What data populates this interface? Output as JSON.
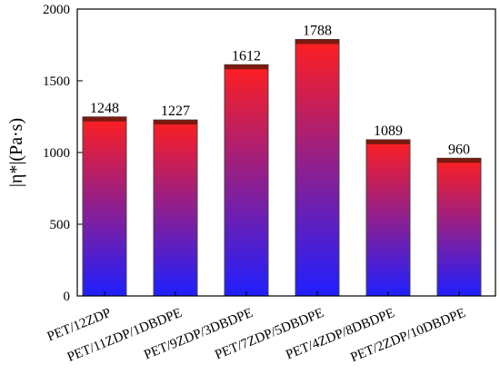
{
  "chart_data": {
    "type": "bar",
    "y_label": "|η*|(Pa·s)",
    "categories": [
      "PET/12ZDP",
      "PET/11ZDP/1DBDPE",
      "PET/9ZDP/3DBDPE",
      "PET/7ZDP/5DBDPE",
      "PET/4ZDP/8DBDPE",
      "PET/2ZDP/10DBDPE"
    ],
    "values": [
      1248,
      1227,
      1612,
      1788,
      1089,
      960
    ],
    "gradient": {
      "top": "#ff1f1f",
      "bottom": "#1f1fff"
    },
    "ylim": [
      0,
      2000
    ],
    "yticks": [
      0,
      500,
      1000,
      1500,
      2000
    ],
    "grid": false
  }
}
